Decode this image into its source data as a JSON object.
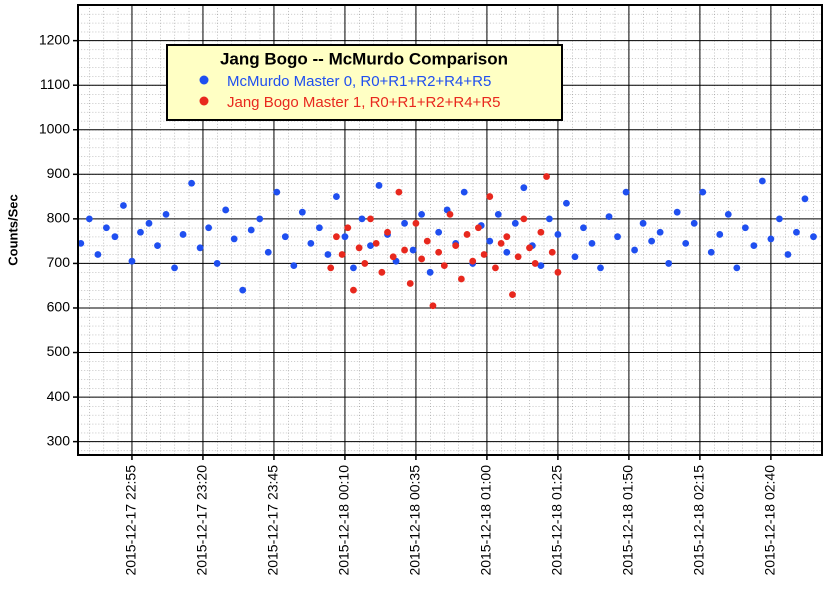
{
  "chart_data": {
    "type": "scatter",
    "title": "Jang Bogo -- McMurdo Comparison",
    "y_label": "Counts/Sec",
    "xlim": [
      "2015-12-17 22:36",
      "2015-12-18 02:58"
    ],
    "xticks": [
      "2015-12-17 22:55",
      "2015-12-17 23:20",
      "2015-12-17 23:45",
      "2015-12-18 00:10",
      "2015-12-18 00:35",
      "2015-12-18 01:00",
      "2015-12-18 01:25",
      "2015-12-18 01:50",
      "2015-12-18 02:15",
      "2015-12-18 02:40"
    ],
    "ylim": [
      270,
      1280
    ],
    "yticks": [
      300,
      400,
      500,
      600,
      700,
      800,
      900,
      1000,
      1100,
      1200
    ],
    "grid": true,
    "legend": "upper left",
    "series": [
      {
        "name": "McMurdo Master 0, R0+R1+R2+R4+R5",
        "color": "#1f4ff0",
        "x": [
          "2015-12-17 22:37",
          "2015-12-17 22:40",
          "2015-12-17 22:43",
          "2015-12-17 22:46",
          "2015-12-17 22:49",
          "2015-12-17 22:52",
          "2015-12-17 22:55",
          "2015-12-17 22:58",
          "2015-12-17 23:01",
          "2015-12-17 23:04",
          "2015-12-17 23:07",
          "2015-12-17 23:10",
          "2015-12-17 23:13",
          "2015-12-17 23:16",
          "2015-12-17 23:19",
          "2015-12-17 23:22",
          "2015-12-17 23:25",
          "2015-12-17 23:28",
          "2015-12-17 23:31",
          "2015-12-17 23:34",
          "2015-12-17 23:37",
          "2015-12-17 23:40",
          "2015-12-17 23:43",
          "2015-12-17 23:46",
          "2015-12-17 23:49",
          "2015-12-17 23:52",
          "2015-12-17 23:55",
          "2015-12-17 23:58",
          "2015-12-18 00:01",
          "2015-12-18 00:04",
          "2015-12-18 00:07",
          "2015-12-18 00:10",
          "2015-12-18 00:13",
          "2015-12-18 00:16",
          "2015-12-18 00:19",
          "2015-12-18 00:22",
          "2015-12-18 00:25",
          "2015-12-18 00:28",
          "2015-12-18 00:31",
          "2015-12-18 00:34",
          "2015-12-18 00:37",
          "2015-12-18 00:40",
          "2015-12-18 00:43",
          "2015-12-18 00:46",
          "2015-12-18 00:49",
          "2015-12-18 00:52",
          "2015-12-18 00:55",
          "2015-12-18 00:58",
          "2015-12-18 01:01",
          "2015-12-18 01:04",
          "2015-12-18 01:07",
          "2015-12-18 01:10",
          "2015-12-18 01:13",
          "2015-12-18 01:16",
          "2015-12-18 01:19",
          "2015-12-18 01:22",
          "2015-12-18 01:25",
          "2015-12-18 01:28",
          "2015-12-18 01:31",
          "2015-12-18 01:34",
          "2015-12-18 01:37",
          "2015-12-18 01:40",
          "2015-12-18 01:43",
          "2015-12-18 01:46",
          "2015-12-18 01:49",
          "2015-12-18 01:52",
          "2015-12-18 01:55",
          "2015-12-18 01:58",
          "2015-12-18 02:01",
          "2015-12-18 02:04",
          "2015-12-18 02:07",
          "2015-12-18 02:10",
          "2015-12-18 02:13",
          "2015-12-18 02:16",
          "2015-12-18 02:19",
          "2015-12-18 02:22",
          "2015-12-18 02:25",
          "2015-12-18 02:28",
          "2015-12-18 02:31",
          "2015-12-18 02:34",
          "2015-12-18 02:37",
          "2015-12-18 02:40",
          "2015-12-18 02:43",
          "2015-12-18 02:46",
          "2015-12-18 02:49",
          "2015-12-18 02:52",
          "2015-12-18 02:55"
        ],
        "values": [
          745,
          800,
          720,
          780,
          760,
          830,
          705,
          770,
          790,
          740,
          810,
          690,
          765,
          880,
          735,
          780,
          700,
          820,
          755,
          640,
          775,
          800,
          725,
          860,
          760,
          695,
          815,
          745,
          780,
          720,
          850,
          760,
          690,
          800,
          740,
          875,
          765,
          705,
          790,
          730,
          810,
          680,
          770,
          820,
          745,
          860,
          700,
          785,
          750,
          810,
          725,
          790,
          870,
          740,
          695,
          800,
          765,
          835,
          715,
          780,
          745,
          690,
          805,
          760,
          860,
          730,
          790,
          750,
          770,
          700,
          815,
          745,
          790,
          860,
          725,
          765,
          810,
          690,
          780,
          740,
          885,
          755,
          800,
          720,
          770,
          845,
          760
        ]
      },
      {
        "name": "Jang Bogo Master 1, R0+R1+R2+R4+R5",
        "color": "#e8281e",
        "x": [
          "2015-12-18 00:05",
          "2015-12-18 00:07",
          "2015-12-18 00:09",
          "2015-12-18 00:11",
          "2015-12-18 00:13",
          "2015-12-18 00:15",
          "2015-12-18 00:17",
          "2015-12-18 00:19",
          "2015-12-18 00:21",
          "2015-12-18 00:23",
          "2015-12-18 00:25",
          "2015-12-18 00:27",
          "2015-12-18 00:29",
          "2015-12-18 00:31",
          "2015-12-18 00:33",
          "2015-12-18 00:35",
          "2015-12-18 00:37",
          "2015-12-18 00:39",
          "2015-12-18 00:41",
          "2015-12-18 00:43",
          "2015-12-18 00:45",
          "2015-12-18 00:47",
          "2015-12-18 00:49",
          "2015-12-18 00:51",
          "2015-12-18 00:53",
          "2015-12-18 00:55",
          "2015-12-18 00:57",
          "2015-12-18 00:59",
          "2015-12-18 01:01",
          "2015-12-18 01:03",
          "2015-12-18 01:05",
          "2015-12-18 01:07",
          "2015-12-18 01:09",
          "2015-12-18 01:11",
          "2015-12-18 01:13",
          "2015-12-18 01:15",
          "2015-12-18 01:17",
          "2015-12-18 01:19",
          "2015-12-18 01:21",
          "2015-12-18 01:23",
          "2015-12-18 01:25"
        ],
        "values": [
          690,
          760,
          720,
          780,
          640,
          735,
          700,
          800,
          745,
          680,
          770,
          715,
          860,
          730,
          655,
          790,
          710,
          750,
          605,
          725,
          695,
          810,
          740,
          665,
          765,
          705,
          780,
          720,
          850,
          690,
          745,
          760,
          630,
          715,
          800,
          735,
          700,
          770,
          895,
          725,
          680
        ]
      }
    ]
  }
}
